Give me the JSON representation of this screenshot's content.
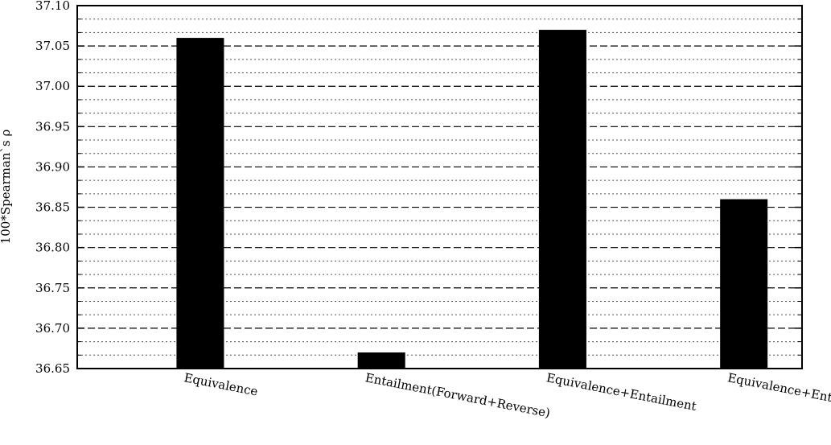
{
  "chart_data": {
    "type": "bar",
    "title": "",
    "xlabel": "",
    "ylabel": "100*Spearman`s ρ",
    "categories": [
      "Equivalence",
      "Entailment(Forward+Reverse)",
      "Equivalence+Entailment",
      "Equivalence+Entailment+OtherRel"
    ],
    "values": [
      37.06,
      36.67,
      37.07,
      36.86
    ],
    "ylim": [
      36.65,
      37.1
    ],
    "yticks": [
      "36.65",
      "36.70",
      "36.75",
      "36.80",
      "36.85",
      "36.90",
      "36.95",
      "37.00",
      "37.05",
      "37.10"
    ],
    "ytick_values": [
      36.65,
      36.7,
      36.75,
      36.8,
      36.85,
      36.9,
      36.95,
      37.0,
      37.05,
      37.1
    ],
    "grid": true,
    "bar_color": "#000000",
    "legend": "none"
  }
}
